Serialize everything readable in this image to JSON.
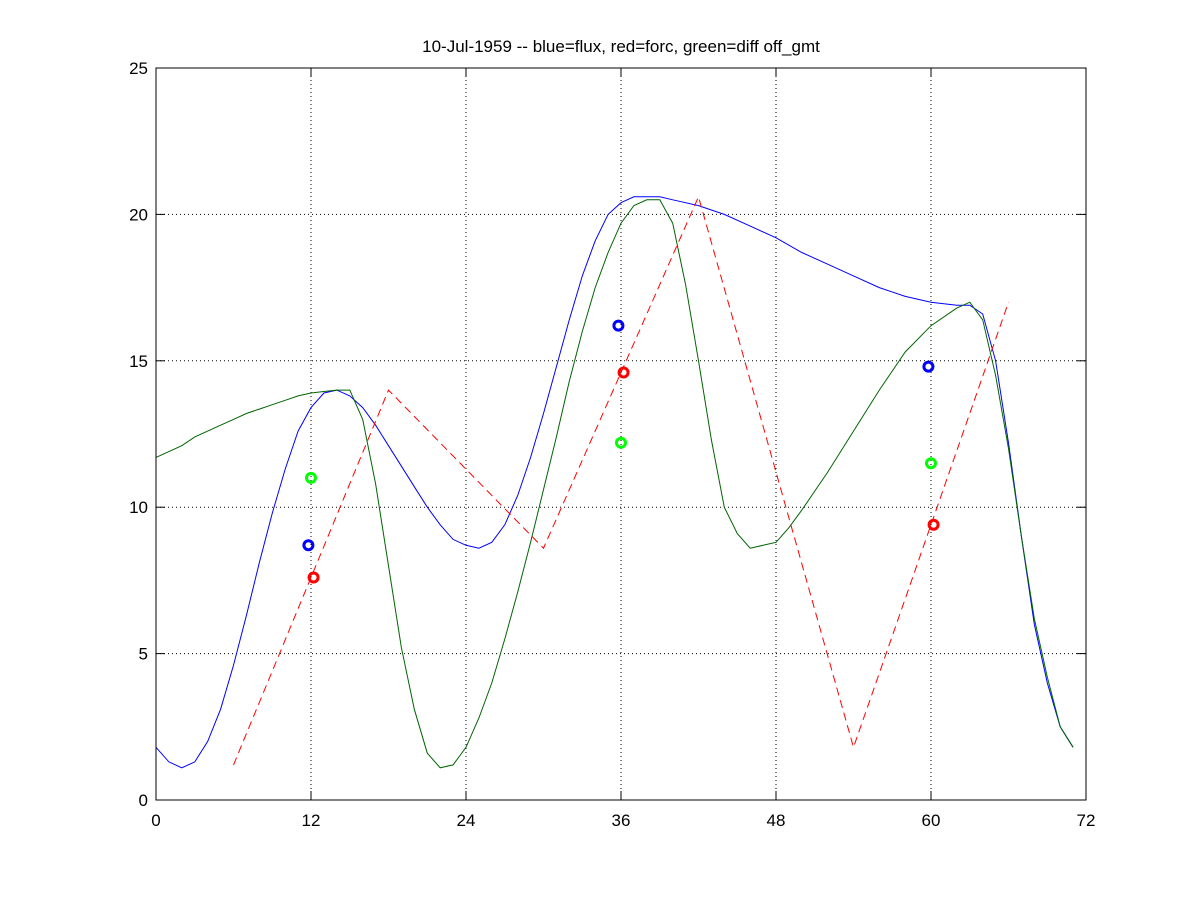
{
  "chart_data": {
    "type": "line",
    "title": "10-Jul-1959 -- blue=flux, red=forc, green=diff off_gmt",
    "xlabel": "",
    "ylabel": "",
    "xlim": [
      0,
      72
    ],
    "ylim": [
      0,
      25
    ],
    "xticks": [
      0,
      12,
      24,
      36,
      48,
      60,
      72
    ],
    "yticks": [
      0,
      5,
      10,
      15,
      20,
      25
    ],
    "grid": true,
    "series": [
      {
        "color": "#0000ff",
        "style": "solid",
        "x": [
          0,
          1,
          2,
          3,
          4,
          5,
          6,
          7,
          8,
          9,
          10,
          11,
          12,
          13,
          14,
          15,
          16,
          17,
          18,
          19,
          20,
          21,
          22,
          23,
          24,
          25,
          26,
          27,
          28,
          29,
          30,
          31,
          32,
          33,
          34,
          35,
          36,
          37,
          38,
          39,
          40,
          42,
          44,
          46,
          48,
          50,
          52,
          54,
          56,
          58,
          60,
          62,
          63,
          64,
          65,
          66,
          67,
          68,
          69,
          70,
          71
        ],
        "y": [
          1.8,
          1.3,
          1.1,
          1.3,
          2.0,
          3.1,
          4.6,
          6.3,
          8.1,
          9.8,
          11.3,
          12.6,
          13.4,
          13.9,
          14.0,
          13.8,
          13.4,
          12.8,
          12.1,
          11.4,
          10.7,
          10.0,
          9.4,
          8.9,
          8.7,
          8.6,
          8.8,
          9.4,
          10.4,
          11.7,
          13.2,
          14.8,
          16.4,
          17.9,
          19.1,
          20.0,
          20.4,
          20.6,
          20.6,
          20.6,
          20.5,
          20.3,
          20.0,
          19.6,
          19.2,
          18.7,
          18.3,
          17.9,
          17.5,
          17.2,
          17.0,
          16.9,
          16.9,
          16.6,
          15.0,
          12.2,
          9.0,
          6.0,
          4.0,
          2.5,
          1.8
        ]
      },
      {
        "color": "#006400",
        "style": "solid",
        "x": [
          0,
          1,
          2,
          3,
          4,
          5,
          6,
          7,
          8,
          9,
          10,
          11,
          12,
          13,
          14,
          15,
          16,
          17,
          18,
          19,
          20,
          21,
          22,
          23,
          24,
          25,
          26,
          27,
          28,
          29,
          30,
          31,
          32,
          33,
          34,
          35,
          36,
          37,
          38,
          39,
          40,
          41,
          42,
          43,
          44,
          45,
          46,
          47,
          48,
          49,
          50,
          52,
          54,
          56,
          58,
          60,
          62,
          63,
          64,
          65,
          66,
          67,
          68,
          69,
          70,
          71
        ],
        "y": [
          11.7,
          11.9,
          12.1,
          12.4,
          12.6,
          12.8,
          13.0,
          13.2,
          13.35,
          13.5,
          13.65,
          13.8,
          13.9,
          13.95,
          14.0,
          14.0,
          13.0,
          10.8,
          8.0,
          5.2,
          3.1,
          1.6,
          1.1,
          1.2,
          1.8,
          2.8,
          4.0,
          5.5,
          7.1,
          8.8,
          10.6,
          12.4,
          14.3,
          16.0,
          17.5,
          18.7,
          19.7,
          20.3,
          20.5,
          20.5,
          19.7,
          17.6,
          15.0,
          12.3,
          10.0,
          9.1,
          8.6,
          8.7,
          8.8,
          9.3,
          9.9,
          11.2,
          12.6,
          14.0,
          15.3,
          16.2,
          16.8,
          17.0,
          16.4,
          14.5,
          12.0,
          9.0,
          6.2,
          4.2,
          2.5,
          1.8
        ]
      },
      {
        "color": "#ff0000",
        "style": "dashed",
        "x": [
          6,
          18,
          30,
          42,
          54,
          66
        ],
        "y": [
          1.2,
          14.0,
          8.6,
          20.6,
          1.8,
          17.0
        ]
      }
    ],
    "markers": [
      {
        "color": "#0000ff",
        "x": [
          11.8,
          35.8,
          59.8
        ],
        "y": [
          8.7,
          16.2,
          14.8
        ]
      },
      {
        "color": "#ff0000",
        "x": [
          12.2,
          36.2,
          60.2
        ],
        "y": [
          7.6,
          14.6,
          9.4
        ]
      },
      {
        "color": "#00ff00",
        "x": [
          12.0,
          36.0,
          60.0
        ],
        "y": [
          11.0,
          12.2,
          11.5
        ]
      }
    ]
  }
}
